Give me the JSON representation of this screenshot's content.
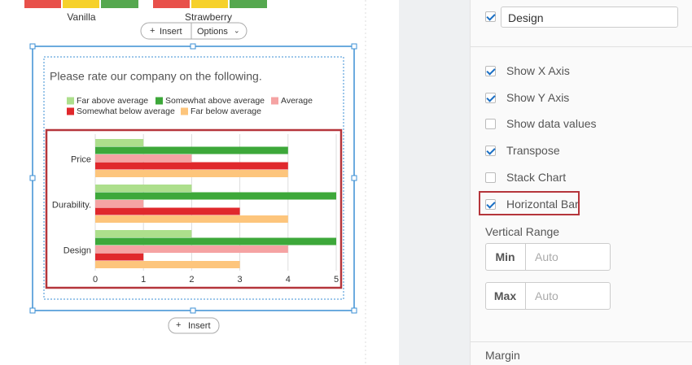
{
  "top_chart": {
    "labels": [
      "Vanilla",
      "Strawberry"
    ]
  },
  "buttons": {
    "insert_top": "Insert",
    "options": "Options",
    "insert_bottom": "Insert"
  },
  "chart": {
    "type": "bar",
    "orientation": "horizontal",
    "title": "Please rate our company on the following.",
    "categories": [
      "Price",
      "Durability.",
      "Design"
    ],
    "series": [
      {
        "name": "Far above average",
        "color": "#addf8c",
        "values": [
          1,
          2,
          2
        ]
      },
      {
        "name": "Somewhat above average",
        "color": "#3da83a",
        "values": [
          4,
          5,
          5
        ]
      },
      {
        "name": "Average",
        "color": "#f5a3a3",
        "values": [
          2,
          1,
          4
        ]
      },
      {
        "name": "Somewhat below average",
        "color": "#e0282c",
        "values": [
          4,
          3,
          1
        ]
      },
      {
        "name": "Far below average",
        "color": "#fdc57c",
        "values": [
          4,
          4,
          3
        ]
      }
    ],
    "xlim": [
      0,
      5
    ],
    "xticks": [
      0,
      1,
      2,
      3,
      4,
      5
    ],
    "grid": true
  },
  "panel": {
    "design_checked": true,
    "design_input": "Design",
    "options": [
      {
        "label": "Show X Axis",
        "checked": true
      },
      {
        "label": "Show Y Axis",
        "checked": true
      },
      {
        "label": "Show data values",
        "checked": false
      },
      {
        "label": "Transpose",
        "checked": true
      },
      {
        "label": "Stack Chart",
        "checked": false
      },
      {
        "label": "Horizontal Bar",
        "checked": true
      }
    ],
    "vertical_range": {
      "label": "Vertical Range",
      "min_label": "Min",
      "min_placeholder": "Auto",
      "max_label": "Max",
      "max_placeholder": "Auto"
    },
    "margin": "Margin"
  }
}
